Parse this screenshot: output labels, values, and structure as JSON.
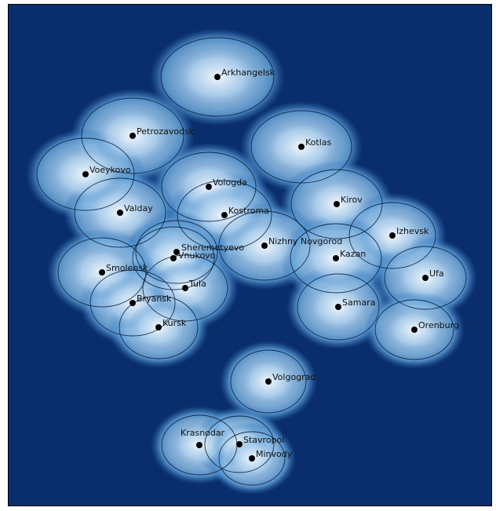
{
  "colors": {
    "background": "#0a2e6b",
    "coverage_edge": "#2f6fb5",
    "coverage_mid": "#7fb3e0",
    "coverage_center": "#dcecf8",
    "outline": "#0b1630",
    "marker": "#000000"
  },
  "stations": [
    {
      "id": "arkhangelsk",
      "name": "Arkhangelsk"
    },
    {
      "id": "petrozavodsk",
      "name": "Petrozavodsk"
    },
    {
      "id": "kotlas",
      "name": "Kotlas"
    },
    {
      "id": "voeykovo",
      "name": "Voeykovo"
    },
    {
      "id": "vologda",
      "name": "Vologda"
    },
    {
      "id": "kirov",
      "name": "Kirov"
    },
    {
      "id": "valday",
      "name": "Valday"
    },
    {
      "id": "kostroma",
      "name": "Kostroma"
    },
    {
      "id": "izhevsk",
      "name": "Izhevsk"
    },
    {
      "id": "nizhny-novgorod",
      "name": "Nizhny Novgorod"
    },
    {
      "id": "sheremetyevo",
      "name": "Sheremetyevo"
    },
    {
      "id": "vnukovo",
      "name": "Vnukovo"
    },
    {
      "id": "kazan",
      "name": "Kazan"
    },
    {
      "id": "smolensk",
      "name": "Smolensk"
    },
    {
      "id": "ufa",
      "name": "Ufa"
    },
    {
      "id": "tula",
      "name": "Tula"
    },
    {
      "id": "bryansk",
      "name": "Bryansk"
    },
    {
      "id": "samara",
      "name": "Samara"
    },
    {
      "id": "kursk",
      "name": "Kursk"
    },
    {
      "id": "orenburg",
      "name": "Orenburg"
    },
    {
      "id": "volgograd",
      "name": "Volgograd"
    },
    {
      "id": "krasnodar",
      "name": "Krasnodar"
    },
    {
      "id": "stavropol",
      "name": "Stavropol"
    },
    {
      "id": "minvody",
      "name": "Minvody"
    }
  ]
}
